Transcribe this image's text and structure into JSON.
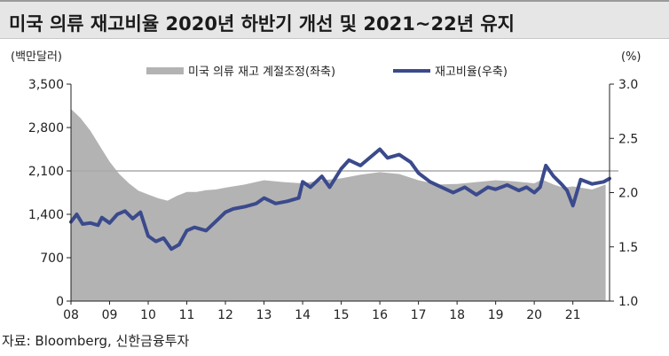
{
  "title": "미국 의류 재고비율 2020년 하반기 개선 및 2021~22년 유지",
  "source": "자료: Bloomberg, 신한금융투자",
  "colors": {
    "area": "#b3b3b3",
    "line": "#3b4a8c",
    "refline": "#aaaaaa"
  },
  "chart_data": {
    "type": "area",
    "left_unit": "(백만달러)",
    "right_unit": "(%)",
    "y_left": {
      "min": 0,
      "max": 3500,
      "ticks": [
        "0",
        "700",
        "1,400",
        "2,100",
        "2,800",
        "3,500"
      ]
    },
    "y_right": {
      "min": 1.0,
      "max": 3.0,
      "ticks": [
        "1.0",
        "1.5",
        "2.0",
        "2.5",
        "3.0"
      ]
    },
    "x_ticks": [
      "08",
      "09",
      "10",
      "11",
      "12",
      "13",
      "14",
      "15",
      "16",
      "17",
      "18",
      "19",
      "20",
      "21"
    ],
    "reference_line_left": 2100,
    "series": [
      {
        "name": "미국 의류 재고 계절조정(좌축)",
        "axis": "left",
        "style": "area",
        "x": [
          2008.0,
          2008.25,
          2008.5,
          2008.75,
          2009.0,
          2009.25,
          2009.5,
          2009.75,
          2010.0,
          2010.25,
          2010.5,
          2010.75,
          2011.0,
          2011.25,
          2011.5,
          2011.75,
          2012.0,
          2012.5,
          2013.0,
          2013.5,
          2014.0,
          2014.5,
          2015.0,
          2015.5,
          2016.0,
          2016.5,
          2017.0,
          2017.5,
          2018.0,
          2018.5,
          2019.0,
          2019.5,
          2020.0,
          2020.2,
          2020.5,
          2020.75,
          2021.0,
          2021.5,
          2021.85
        ],
        "values": [
          3100,
          2950,
          2750,
          2500,
          2250,
          2050,
          1900,
          1780,
          1720,
          1660,
          1620,
          1700,
          1760,
          1760,
          1790,
          1800,
          1830,
          1880,
          1950,
          1920,
          1900,
          1950,
          1980,
          2040,
          2080,
          2050,
          1950,
          1880,
          1890,
          1920,
          1950,
          1930,
          1900,
          1960,
          1880,
          1830,
          1850,
          1800,
          1880
        ]
      },
      {
        "name": "재고비율(우축)",
        "axis": "right",
        "style": "line",
        "x": [
          2008.0,
          2008.15,
          2008.3,
          2008.5,
          2008.7,
          2008.8,
          2009.0,
          2009.2,
          2009.4,
          2009.6,
          2009.8,
          2010.0,
          2010.2,
          2010.4,
          2010.6,
          2010.8,
          2011.0,
          2011.2,
          2011.5,
          2011.8,
          2012.0,
          2012.2,
          2012.5,
          2012.8,
          2013.0,
          2013.3,
          2013.6,
          2013.9,
          2014.0,
          2014.2,
          2014.5,
          2014.7,
          2015.0,
          2015.2,
          2015.5,
          2016.0,
          2016.2,
          2016.5,
          2016.8,
          2017.0,
          2017.3,
          2017.6,
          2017.9,
          2018.2,
          2018.5,
          2018.8,
          2019.0,
          2019.3,
          2019.6,
          2019.8,
          2020.0,
          2020.15,
          2020.3,
          2020.5,
          2020.7,
          2020.85,
          2021.0,
          2021.2,
          2021.5,
          2021.8,
          2021.95
        ],
        "values": [
          1.73,
          1.8,
          1.71,
          1.72,
          1.7,
          1.77,
          1.72,
          1.8,
          1.83,
          1.76,
          1.82,
          1.6,
          1.55,
          1.58,
          1.48,
          1.52,
          1.65,
          1.68,
          1.65,
          1.75,
          1.82,
          1.85,
          1.87,
          1.9,
          1.95,
          1.9,
          1.92,
          1.95,
          2.1,
          2.05,
          2.15,
          2.05,
          2.22,
          2.3,
          2.25,
          2.4,
          2.32,
          2.35,
          2.28,
          2.18,
          2.1,
          2.05,
          2.0,
          2.05,
          1.98,
          2.05,
          2.03,
          2.07,
          2.02,
          2.05,
          2.0,
          2.05,
          2.25,
          2.15,
          2.08,
          2.02,
          1.88,
          2.12,
          2.08,
          2.1,
          2.13
        ]
      }
    ]
  }
}
